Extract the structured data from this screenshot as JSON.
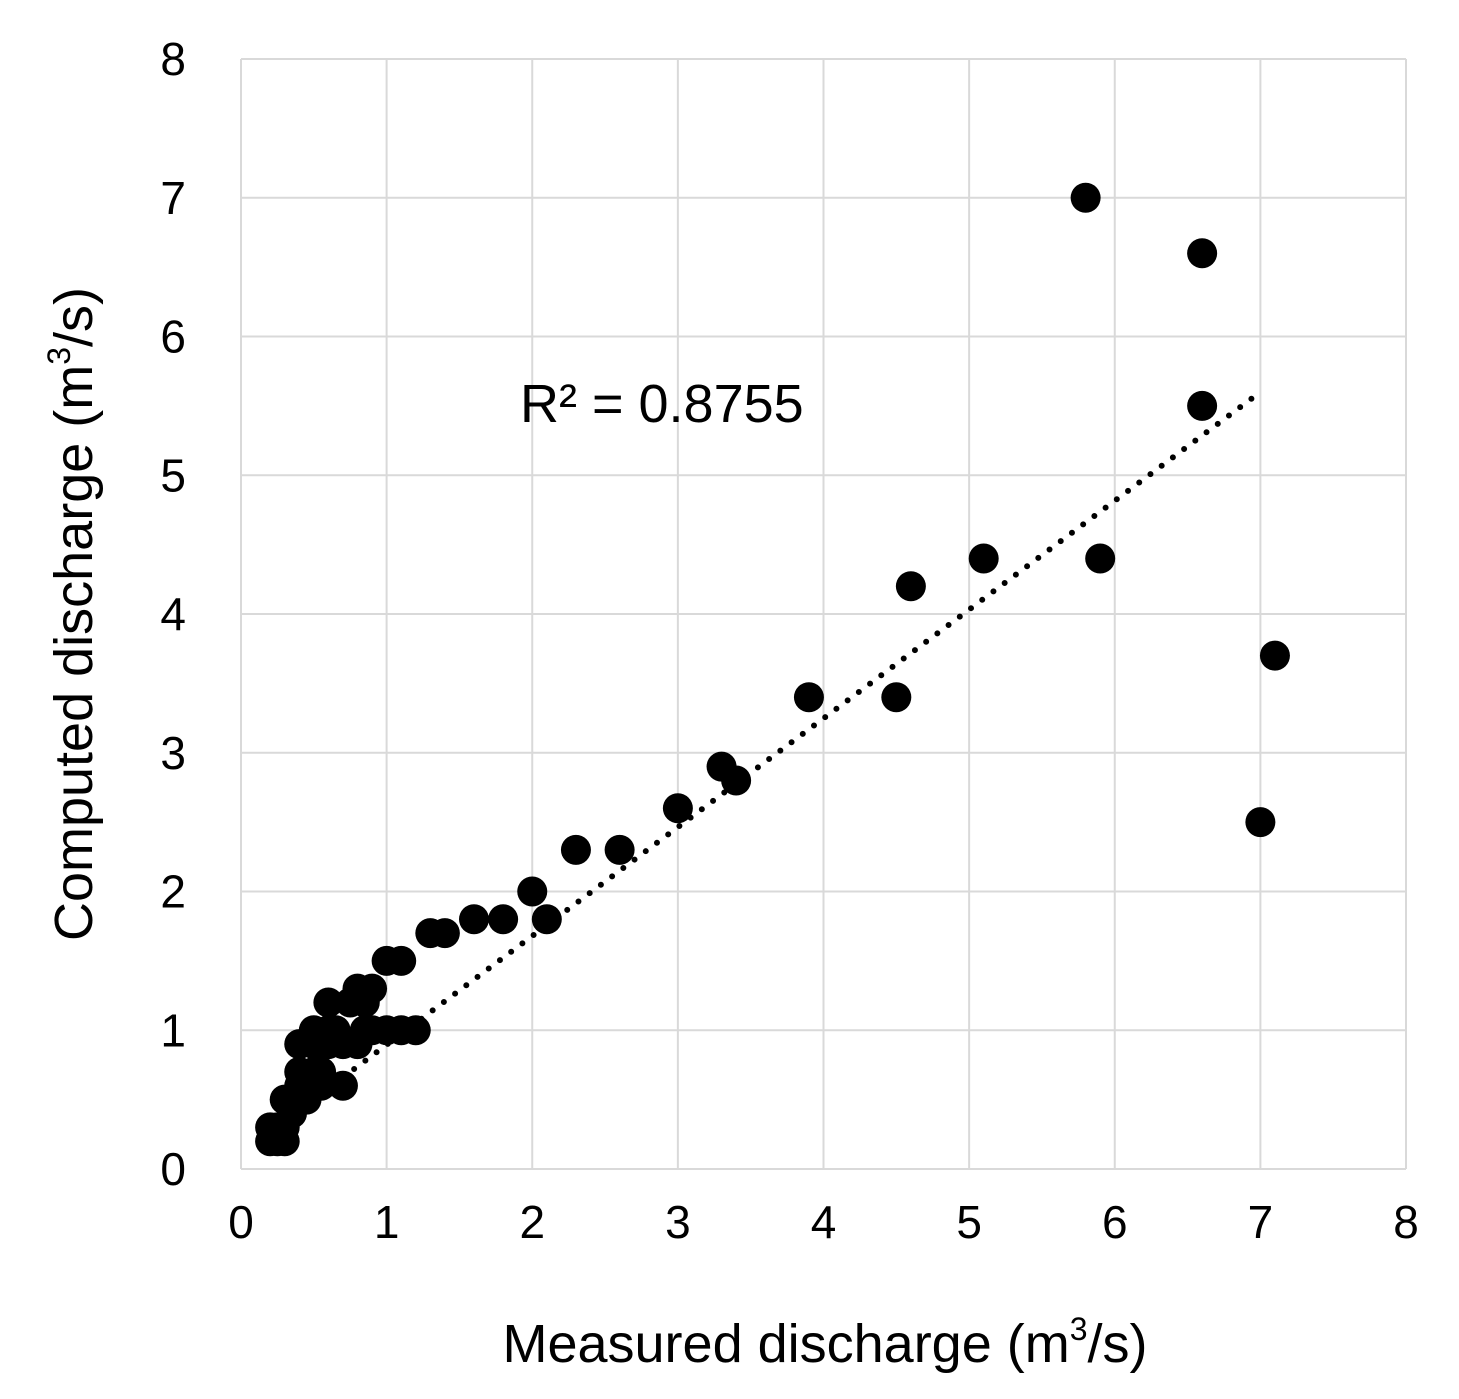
{
  "chart_data": {
    "type": "scatter",
    "title": "",
    "xlabel": "Measured discharge (m",
    "xlabel_sup": "3",
    "xlabel_tail": "/s)",
    "ylabel": "Computed discharge (m",
    "ylabel_sup": "3",
    "ylabel_tail": "/s)",
    "xlim": [
      0,
      8
    ],
    "ylim": [
      0,
      8
    ],
    "xticks": [
      "0",
      "1",
      "2",
      "3",
      "4",
      "5",
      "6",
      "7",
      "8"
    ],
    "yticks": [
      "0",
      "1",
      "2",
      "3",
      "4",
      "5",
      "6",
      "7",
      "8"
    ],
    "grid": true,
    "legend": "none",
    "annotation": "R² = 0.8755",
    "trendline": {
      "style": "dotted",
      "x": [
        0.7,
        7.0
      ],
      "y": [
        0.66,
        5.6
      ]
    },
    "colors": {
      "marker": "#000000",
      "grid": "#d9d9d9"
    },
    "points": [
      [
        0.2,
        0.2
      ],
      [
        0.2,
        0.3
      ],
      [
        0.25,
        0.2
      ],
      [
        0.25,
        0.3
      ],
      [
        0.3,
        0.2
      ],
      [
        0.3,
        0.3
      ],
      [
        0.3,
        0.5
      ],
      [
        0.35,
        0.4
      ],
      [
        0.35,
        0.5
      ],
      [
        0.4,
        0.5
      ],
      [
        0.4,
        0.6
      ],
      [
        0.4,
        0.7
      ],
      [
        0.4,
        0.9
      ],
      [
        0.45,
        0.5
      ],
      [
        0.45,
        0.6
      ],
      [
        0.5,
        0.7
      ],
      [
        0.5,
        0.9
      ],
      [
        0.5,
        1.0
      ],
      [
        0.55,
        0.6
      ],
      [
        0.55,
        0.7
      ],
      [
        0.6,
        0.9
      ],
      [
        0.6,
        1.0
      ],
      [
        0.6,
        1.2
      ],
      [
        0.65,
        1.0
      ],
      [
        0.7,
        0.6
      ],
      [
        0.7,
        0.9
      ],
      [
        0.75,
        1.2
      ],
      [
        0.8,
        0.9
      ],
      [
        0.8,
        1.3
      ],
      [
        0.85,
        1.0
      ],
      [
        0.85,
        1.2
      ],
      [
        0.9,
        1.3
      ],
      [
        0.9,
        1.0
      ],
      [
        1.0,
        1.5
      ],
      [
        1.0,
        1.0
      ],
      [
        1.1,
        1.0
      ],
      [
        1.1,
        1.5
      ],
      [
        1.2,
        1.0
      ],
      [
        1.3,
        1.7
      ],
      [
        1.4,
        1.7
      ],
      [
        1.6,
        1.8
      ],
      [
        1.8,
        1.8
      ],
      [
        2.0,
        2.0
      ],
      [
        2.1,
        1.8
      ],
      [
        2.3,
        2.3
      ],
      [
        2.6,
        2.3
      ],
      [
        3.0,
        2.6
      ],
      [
        3.3,
        2.9
      ],
      [
        3.4,
        2.8
      ],
      [
        3.9,
        3.4
      ],
      [
        4.5,
        3.4
      ],
      [
        4.6,
        4.2
      ],
      [
        5.1,
        4.4
      ],
      [
        5.8,
        7.0
      ],
      [
        5.9,
        4.4
      ],
      [
        6.6,
        6.6
      ],
      [
        6.6,
        5.5
      ],
      [
        7.0,
        2.5
      ],
      [
        7.1,
        3.7
      ]
    ]
  }
}
